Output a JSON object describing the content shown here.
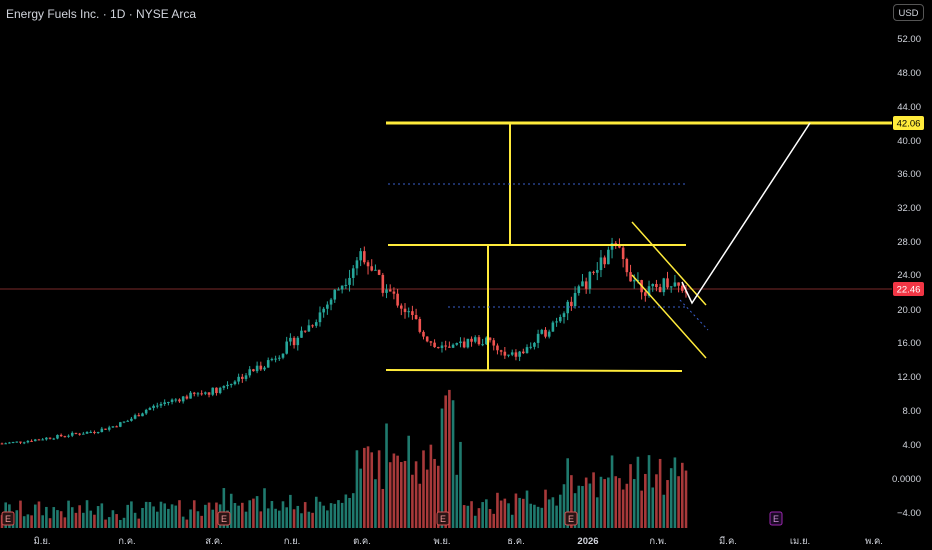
{
  "header": {
    "title": "Energy Fuels Inc. · 1D · NYSE Arca",
    "currency": "USD"
  },
  "axis": {
    "y_ticks": [
      "52.00",
      "48.00",
      "44.00",
      "40.00",
      "36.00",
      "32.00",
      "28.00",
      "24.00",
      "20.00",
      "16.00",
      "12.00",
      "8.00",
      "4.00",
      "0.0000",
      "−4.00"
    ],
    "x_ticks": [
      "มิ.ย.",
      "ก.ค.",
      "ส.ค.",
      "ก.ย.",
      "ต.ค.",
      "พ.ย.",
      "ธ.ค.",
      "2026",
      "ก.พ.",
      "มี.ค.",
      "เม.ย.",
      "พ.ค."
    ]
  },
  "price_labels": {
    "target": "42.06",
    "current": "22.46"
  },
  "event_markers": [
    "E",
    "E",
    "E",
    "E",
    "E"
  ],
  "colors": {
    "up": "#26a69a",
    "down": "#ef5350",
    "annotation": "#ffeb3b",
    "target_label_bg": "#ffeb3b",
    "current_label_bg": "#f23645"
  },
  "chart_data": {
    "type": "candlestick",
    "start": [
      4.2,
      4.4,
      4.7,
      5.0,
      5.3,
      5.6,
      6.1,
      6.9,
      8.2,
      9.0,
      9.6,
      10.1,
      10.6,
      11.8,
      12.9,
      14.2,
      16.0,
      18.0,
      20.5,
      23.5,
      27.0,
      23.0,
      21.0,
      18.5,
      15.6,
      15.2,
      16.5,
      16.2,
      14.3,
      15.0,
      17.0,
      19.5,
      22.0,
      24.5,
      27.5,
      24.0,
      22.0,
      23.5,
      22.5
    ],
    "end_target": 42.06,
    "current_price": 22.46,
    "levels": {
      "range_top": 27.6,
      "range_bottom": 12.8,
      "target": 42.06,
      "mid_dotted": 34.8
    }
  }
}
